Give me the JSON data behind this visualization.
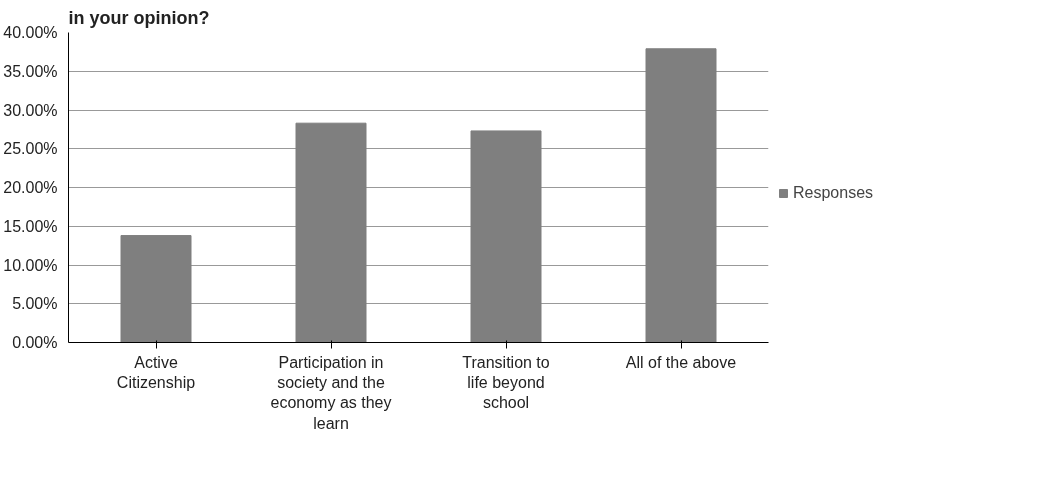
{
  "chart_data": {
    "type": "bar",
    "title": "in your opinion?",
    "categories": [
      "Active Citizenship",
      "Participation in society and the economy as they learn",
      "Transition to life beyond school",
      "All of the above"
    ],
    "series": [
      {
        "name": "Responses",
        "color": "#7f7f7f",
        "values": [
          13.8,
          28.3,
          27.3,
          37.9
        ]
      }
    ],
    "ylim": [
      0,
      40
    ],
    "yticks": [
      {
        "value": 0,
        "label": "0.00%"
      },
      {
        "value": 5,
        "label": "5.00%"
      },
      {
        "value": 10,
        "label": "10.00%"
      },
      {
        "value": 15,
        "label": "15.00%"
      },
      {
        "value": 20,
        "label": "20.00%"
      },
      {
        "value": 25,
        "label": "25.00%"
      },
      {
        "value": 30,
        "label": "30.00%"
      },
      {
        "value": 35,
        "label": "35.00%"
      },
      {
        "value": 40,
        "label": "40.00%"
      }
    ],
    "grid": "y",
    "legend": "right"
  }
}
